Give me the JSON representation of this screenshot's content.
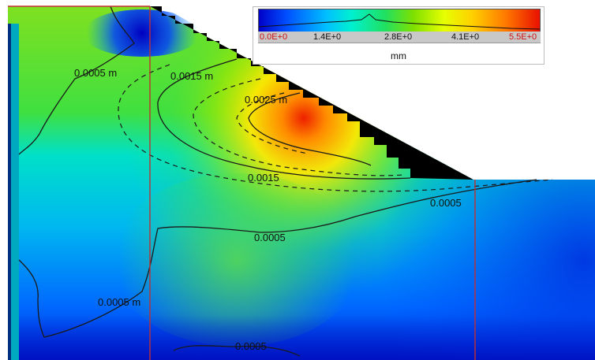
{
  "legend": {
    "unit": "mm",
    "ticks": [
      {
        "label": "0.0E+0",
        "highlight": true
      },
      {
        "label": "1.4E+0",
        "highlight": false
      },
      {
        "label": "2.8E+0",
        "highlight": false
      },
      {
        "label": "4.1E+0",
        "highlight": false
      },
      {
        "label": "5.5E+0",
        "highlight": true
      }
    ]
  },
  "contour_labels": [
    {
      "id": "c1",
      "text": "0.0005 m"
    },
    {
      "id": "c2",
      "text": "0.0015 m"
    },
    {
      "id": "c3",
      "text": "0.0025 m"
    },
    {
      "id": "c4",
      "text": "0.0015"
    },
    {
      "id": "c5",
      "text": "0.0005"
    },
    {
      "id": "c6",
      "text": "0.0005"
    },
    {
      "id": "c7",
      "text": "0.0005 m"
    },
    {
      "id": "c8",
      "text": "0.0005"
    }
  ],
  "colors": {
    "low": "#0000c8",
    "mid_low": "#00e0e0",
    "mid": "#40e040",
    "mid_high": "#ffff00",
    "high": "#e81000",
    "void": "#000000",
    "section_line": "#c03030"
  }
}
